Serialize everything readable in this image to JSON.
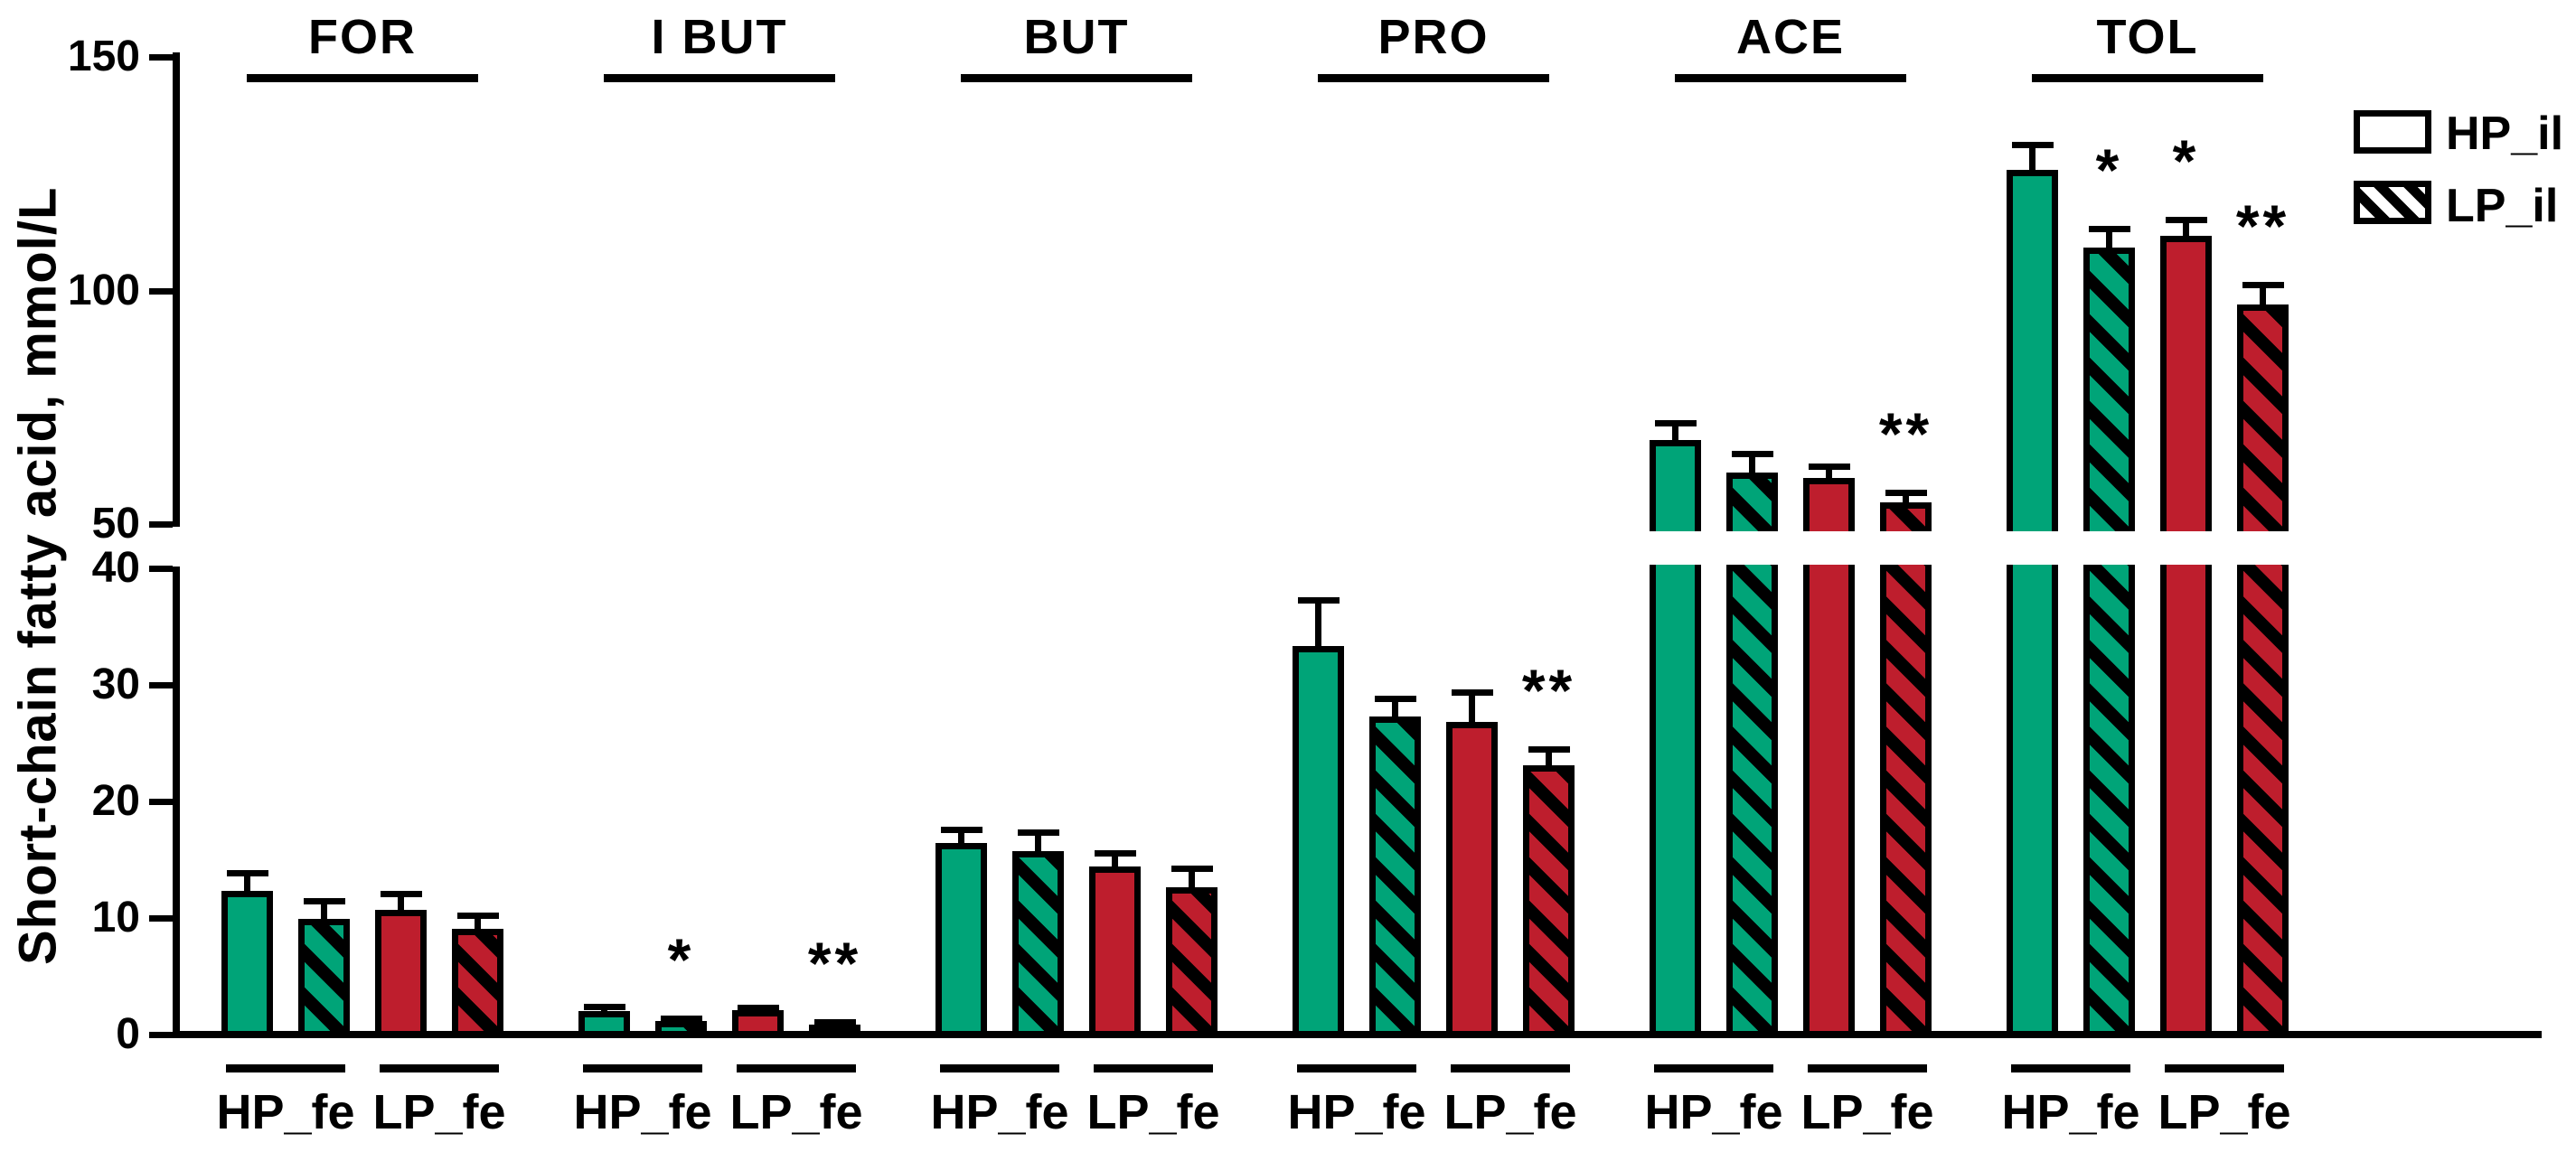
{
  "chart_data": {
    "type": "bar",
    "title": "",
    "ylabel": "Short-chain fatty acid, mmol/L",
    "y_axis": {
      "broken": true,
      "lower_ticks": [
        0,
        10,
        20,
        30,
        40
      ],
      "upper_ticks": [
        50,
        100,
        150
      ],
      "lower_range": [
        0,
        40
      ],
      "upper_range": [
        50,
        150
      ]
    },
    "legend": [
      {
        "label": "HP_il",
        "pattern": "open"
      },
      {
        "label": "LP_il",
        "pattern": "hatched"
      }
    ],
    "colors": {
      "hp_fe_green": "#00A478",
      "lp_fe_red": "#BE1E2D",
      "outline": "#000000",
      "background": "#FFFFFF"
    },
    "series_legend_note": "solid = HP_il, hatched = LP_il; green = HP_fe, red = LP_fe",
    "groups": [
      {
        "label": "FOR",
        "subgroups": [
          {
            "label": "HP_fe",
            "color_key": "hp_fe_green",
            "bars": [
              {
                "series": "HP_il",
                "value": 12.3,
                "err": 1.6,
                "sig": ""
              },
              {
                "series": "LP_il",
                "value": 9.9,
                "err": 1.6,
                "sig": ""
              }
            ]
          },
          {
            "label": "LP_fe",
            "color_key": "lp_fe_red",
            "bars": [
              {
                "series": "HP_il",
                "value": 10.7,
                "err": 1.4,
                "sig": ""
              },
              {
                "series": "LP_il",
                "value": 9.1,
                "err": 1.1,
                "sig": ""
              }
            ]
          }
        ]
      },
      {
        "label": "I BUT",
        "subgroups": [
          {
            "label": "HP_fe",
            "color_key": "hp_fe_green",
            "bars": [
              {
                "series": "HP_il",
                "value": 2.0,
                "err": 0.4,
                "sig": ""
              },
              {
                "series": "LP_il",
                "value": 1.2,
                "err": 0.2,
                "sig": "*"
              }
            ]
          },
          {
            "label": "LP_fe",
            "color_key": "lp_fe_red",
            "bars": [
              {
                "series": "HP_il",
                "value": 2.1,
                "err": 0.25,
                "sig": ""
              },
              {
                "series": "LP_il",
                "value": 0.85,
                "err": 0.2,
                "sig": "**"
              }
            ]
          }
        ]
      },
      {
        "label": "BUT",
        "subgroups": [
          {
            "label": "HP_fe",
            "color_key": "hp_fe_green",
            "bars": [
              {
                "series": "HP_il",
                "value": 16.4,
                "err": 1.2,
                "sig": ""
              },
              {
                "series": "LP_il",
                "value": 15.7,
                "err": 1.7,
                "sig": ""
              }
            ]
          },
          {
            "label": "LP_fe",
            "color_key": "lp_fe_red",
            "bars": [
              {
                "series": "HP_il",
                "value": 14.4,
                "err": 1.2,
                "sig": ""
              },
              {
                "series": "LP_il",
                "value": 12.6,
                "err": 1.7,
                "sig": ""
              }
            ]
          }
        ]
      },
      {
        "label": "PRO",
        "subgroups": [
          {
            "label": "HP_fe",
            "color_key": "hp_fe_green",
            "bars": [
              {
                "series": "HP_il",
                "value": 33.3,
                "err": 4.0,
                "sig": ""
              },
              {
                "series": "LP_il",
                "value": 27.3,
                "err": 1.5,
                "sig": ""
              }
            ]
          },
          {
            "label": "LP_fe",
            "color_key": "lp_fe_red",
            "bars": [
              {
                "series": "HP_il",
                "value": 26.8,
                "err": 2.6,
                "sig": ""
              },
              {
                "series": "LP_il",
                "value": 23.1,
                "err": 1.4,
                "sig": "**"
              }
            ]
          }
        ]
      },
      {
        "label": "ACE",
        "subgroups": [
          {
            "label": "HP_fe",
            "color_key": "hp_fe_green",
            "bars": [
              {
                "series": "HP_il",
                "value": 68.0,
                "err": 3.7,
                "sig": ""
              },
              {
                "series": "LP_il",
                "value": 61.0,
                "err": 4.0,
                "sig": ""
              }
            ]
          },
          {
            "label": "LP_fe",
            "color_key": "lp_fe_red",
            "bars": [
              {
                "series": "HP_il",
                "value": 59.9,
                "err": 2.5,
                "sig": ""
              },
              {
                "series": "LP_il",
                "value": 54.6,
                "err": 2.2,
                "sig": "**"
              }
            ]
          }
        ]
      },
      {
        "label": "TOL",
        "subgroups": [
          {
            "label": "HP_fe",
            "color_key": "hp_fe_green",
            "bars": [
              {
                "series": "HP_il",
                "value": 125.8,
                "err": 5.5,
                "sig": ""
              },
              {
                "series": "LP_il",
                "value": 109.2,
                "err": 4.0,
                "sig": "*"
              }
            ]
          },
          {
            "label": "LP_fe",
            "color_key": "lp_fe_red",
            "bars": [
              {
                "series": "HP_il",
                "value": 111.7,
                "err": 3.5,
                "sig": "*"
              },
              {
                "series": "LP_il",
                "value": 97.0,
                "err": 4.3,
                "sig": "**"
              }
            ]
          }
        ]
      }
    ]
  }
}
